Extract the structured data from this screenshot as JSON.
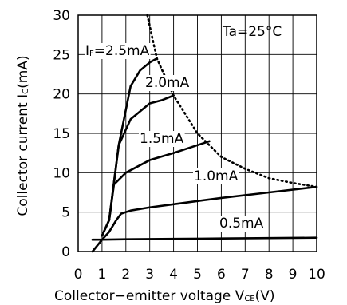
{
  "chart_data": {
    "type": "line",
    "xlabel_main": "Collector−emitter voltage V",
    "xlabel_sub": "CE",
    "xlabel_unit": "(V)",
    "ylabel_main": "Collector current I",
    "ylabel_sub": "C",
    "ylabel_unit": "(mA)",
    "annotation": "Ta=25°C",
    "xlim": [
      0,
      10
    ],
    "ylim": [
      0,
      30
    ],
    "grid": true,
    "x_ticks": [
      "0",
      "1",
      "2",
      "3",
      "4",
      "5",
      "6",
      "7",
      "8",
      "9",
      "10"
    ],
    "y_ticks": [
      "0",
      "5",
      "10",
      "15",
      "20",
      "25",
      "30"
    ],
    "x_tick_values": [
      0,
      1,
      2,
      3,
      4,
      5,
      6,
      7,
      8,
      9,
      10
    ],
    "y_tick_values": [
      0,
      5,
      10,
      15,
      20,
      25,
      30
    ],
    "series": [
      {
        "name": "0.5mA",
        "label_prefix": "",
        "label_sub": "",
        "label_value": "0.5mA",
        "x": [
          0.6,
          1.0,
          2.0,
          4.0,
          6.0,
          8.0,
          10.0
        ],
        "y": [
          1.5,
          1.5,
          1.55,
          1.6,
          1.65,
          1.7,
          1.75
        ]
      },
      {
        "name": "1.0mA",
        "label_prefix": "",
        "label_sub": "",
        "label_value": "1.0mA",
        "x": [
          0.6,
          1.0,
          1.3,
          1.6,
          1.8,
          2.2,
          3.0,
          4.0,
          6.0,
          8.0,
          10.0
        ],
        "y": [
          0.0,
          1.5,
          2.5,
          4.0,
          4.8,
          5.2,
          5.6,
          6.0,
          6.8,
          7.5,
          8.2
        ]
      },
      {
        "name": "1.5mA",
        "label_prefix": "",
        "label_sub": "",
        "label_value": "1.5mA",
        "x": [
          1.0,
          1.3,
          1.5,
          2.0,
          3.0,
          4.0,
          5.0,
          5.5
        ],
        "y": [
          2.0,
          4.0,
          8.5,
          10.0,
          11.6,
          12.5,
          13.5,
          14.0
        ]
      },
      {
        "name": "2.0mA",
        "label_prefix": "",
        "label_sub": "",
        "label_value": "2.0mA",
        "x": [
          1.0,
          1.3,
          1.7,
          2.2,
          3.0,
          3.5,
          4.0
        ],
        "y": [
          2.0,
          4.0,
          13.5,
          16.8,
          18.8,
          19.2,
          19.8
        ]
      },
      {
        "name": "2.5mA",
        "label_prefix": "I",
        "label_sub": "F",
        "label_value": "=2.5mA",
        "x": [
          1.0,
          1.3,
          1.7,
          2.2,
          2.6,
          3.0,
          3.3
        ],
        "y": [
          2.0,
          4.0,
          13.5,
          21.0,
          23.0,
          24.0,
          24.5
        ]
      }
    ],
    "dotted_boundary": {
      "x": [
        2.9,
        3.3,
        4.0,
        5.0,
        6.0,
        7.0,
        8.0,
        9.0,
        10.0
      ],
      "y": [
        30.0,
        24.5,
        19.8,
        15.0,
        12.0,
        10.5,
        9.3,
        8.7,
        8.2
      ]
    }
  }
}
